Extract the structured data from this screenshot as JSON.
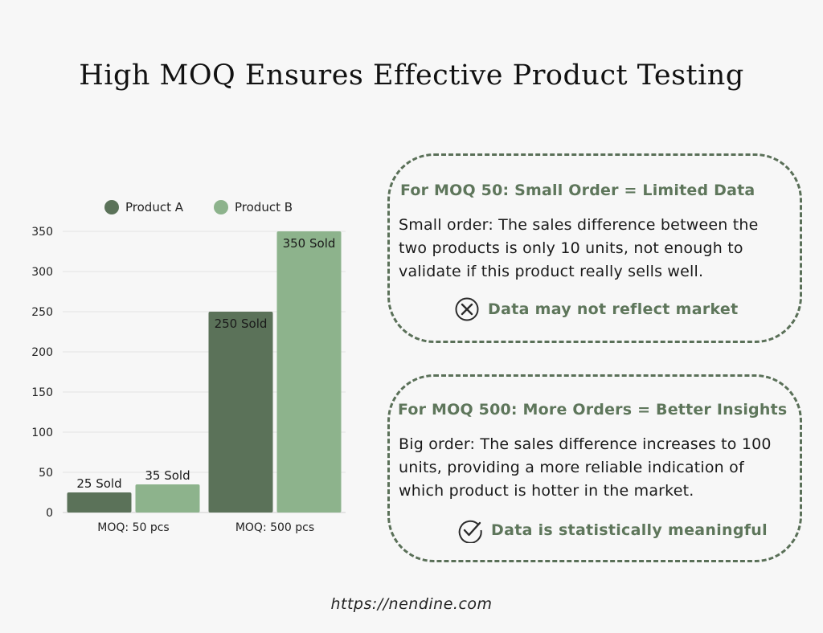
{
  "title": "High MOQ Ensures Effective Product Testing",
  "chart_data": {
    "type": "bar",
    "categories": [
      "MOQ: 50 pcs",
      "MOQ: 500 pcs"
    ],
    "series": [
      {
        "name": "Product A",
        "values": [
          25,
          250
        ],
        "labels": [
          "25 Sold",
          "250 Sold"
        ],
        "color": "#5b7259"
      },
      {
        "name": "Product B",
        "values": [
          35,
          350
        ],
        "labels": [
          "35 Sold",
          "350 Sold"
        ],
        "color": "#8db38c"
      }
    ],
    "ylim": [
      0,
      350
    ],
    "yticks": [
      0,
      50,
      100,
      150,
      200,
      250,
      300,
      350
    ],
    "grid": true,
    "legend": "top"
  },
  "cards": [
    {
      "title": "For MOQ 50: Small Order = Limited Data",
      "lines": [
        "Small order: The sales difference between the",
        "two products is only 10 units, not enough to",
        "validate if this product really sells well."
      ],
      "status": "Data may not reflect market",
      "icon": "x-circle-icon"
    },
    {
      "title": "For MOQ 500: More Orders = Better Insights",
      "lines": [
        "Big order: The sales difference increases to 100",
        "units, providing a more reliable indication of",
        "which product is hotter in the market."
      ],
      "status": "Data is statistically meaningful",
      "icon": "check-circle-icon"
    }
  ],
  "footer": "https://nendine.com",
  "colors": {
    "accent": "#5e765b",
    "border": "#5a7058",
    "background": "#f7f7f7"
  }
}
